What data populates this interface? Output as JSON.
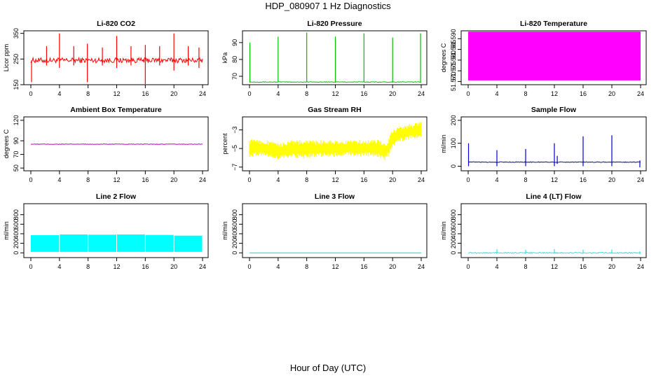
{
  "figure": {
    "title": "HDP_080907  1 Hz Diagnostics",
    "xlabel": "Hour of Day (UTC)"
  },
  "chart_data": [
    {
      "type": "line",
      "title": "Li-820 CO2",
      "xlabel": "Hour of Day (UTC)",
      "ylabel": "Licor ppm",
      "xlim": [
        0,
        24
      ],
      "ylim": [
        150,
        360
      ],
      "xticks": [
        0,
        4,
        8,
        12,
        16,
        20,
        24
      ],
      "xtick_labels": [
        "0",
        "4",
        "8",
        "12",
        "16",
        "20",
        "24"
      ],
      "yticks": [
        150,
        250,
        350
      ],
      "ytick_labels": [
        "150",
        "250",
        "350"
      ],
      "color": "#ff0000",
      "series": [
        {
          "name": "CO2",
          "baseline": 245,
          "noise": 10,
          "spikes": [
            {
              "x": 0.1,
              "low": 160,
              "high": 245
            },
            {
              "x": 2.2,
              "low": 225,
              "high": 300
            },
            {
              "x": 4.0,
              "low": 215,
              "high": 350
            },
            {
              "x": 6.0,
              "low": 225,
              "high": 300
            },
            {
              "x": 7.9,
              "low": 160,
              "high": 310
            },
            {
              "x": 10.0,
              "low": 225,
              "high": 295
            },
            {
              "x": 12.0,
              "low": 215,
              "high": 340
            },
            {
              "x": 14.0,
              "low": 225,
              "high": 300
            },
            {
              "x": 16.0,
              "low": 150,
              "high": 305
            },
            {
              "x": 18.0,
              "low": 225,
              "high": 300
            },
            {
              "x": 20.0,
              "low": 205,
              "high": 350
            },
            {
              "x": 22.0,
              "low": 225,
              "high": 300
            },
            {
              "x": 23.5,
              "low": 215,
              "high": 295
            }
          ]
        }
      ]
    },
    {
      "type": "line",
      "title": "Li-820 Pressure",
      "xlabel": "Hour of Day (UTC)",
      "ylabel": "kPa",
      "xlim": [
        0,
        24
      ],
      "ylim": [
        65,
        97
      ],
      "xticks": [
        0,
        4,
        8,
        12,
        16,
        20,
        24
      ],
      "xtick_labels": [
        "0",
        "4",
        "8",
        "12",
        "16",
        "20",
        "24"
      ],
      "yticks": [
        70,
        80,
        90
      ],
      "ytick_labels": [
        "70",
        "80",
        "90"
      ],
      "color": "#00c000",
      "series": [
        {
          "name": "Pressure",
          "baseline": 66.6,
          "noise": 0.2,
          "spikes": [
            {
              "x": 0.05,
              "low": 66.5,
              "high": 90
            },
            {
              "x": 4.0,
              "low": 66.5,
              "high": 93.5
            },
            {
              "x": 8.0,
              "low": 66.5,
              "high": 96
            },
            {
              "x": 12.0,
              "low": 66.5,
              "high": 93.5
            },
            {
              "x": 16.0,
              "low": 66.5,
              "high": 95.5
            },
            {
              "x": 20.0,
              "low": 66.5,
              "high": 93
            },
            {
              "x": 23.9,
              "low": 66.5,
              "high": 95.5
            }
          ]
        }
      ]
    },
    {
      "type": "area",
      "title": "Li-820 Temperature",
      "xlabel": "Hour of Day (UTC)",
      "ylabel": "degrees C",
      "xlim": [
        0,
        24
      ],
      "ylim": [
        51.5685,
        51.5937
      ],
      "xticks": [
        0,
        4,
        8,
        12,
        16,
        20,
        24
      ],
      "xtick_labels": [
        "0",
        "4",
        "8",
        "12",
        "16",
        "20",
        "24"
      ],
      "yticks": [
        51.57,
        51.575,
        51.58,
        51.585,
        51.59
      ],
      "ytick_labels": [
        "51.570",
        "51.575",
        "51.580",
        "51.585",
        "51.590"
      ],
      "color": "#ff00ff",
      "series": [
        {
          "name": "Temperature",
          "band_low": 51.5705,
          "band_high": 51.5933
        }
      ]
    },
    {
      "type": "line",
      "title": "Ambient Box Temperature",
      "xlabel": "Hour of Day (UTC)",
      "ylabel": "degrees C",
      "xlim": [
        0,
        24
      ],
      "ylim": [
        46,
        125
      ],
      "xticks": [
        0,
        4,
        8,
        12,
        16,
        20,
        24
      ],
      "xtick_labels": [
        "0",
        "4",
        "8",
        "12",
        "16",
        "20",
        "24"
      ],
      "yticks": [
        50,
        70,
        90,
        120
      ],
      "ytick_labels": [
        "50",
        "70",
        "90",
        "120"
      ],
      "color": "#c000c0",
      "series": [
        {
          "name": "Box Temperature",
          "baseline": 85,
          "noise": 0.4,
          "spikes": []
        }
      ]
    },
    {
      "type": "area",
      "title": "Gas Stream RH",
      "xlabel": "Hour of Day (UTC)",
      "ylabel": "percent",
      "xlim": [
        0,
        24
      ],
      "ylim": [
        -7.4,
        -1.6
      ],
      "xticks": [
        0,
        4,
        8,
        12,
        16,
        20,
        24
      ],
      "xtick_labels": [
        "0",
        "4",
        "8",
        "12",
        "16",
        "20",
        "24"
      ],
      "yticks": [
        -7,
        -5,
        -3
      ],
      "ytick_labels": [
        "−7",
        "−5",
        "−3"
      ],
      "color": "#ffff00",
      "series": [
        {
          "name": "RH",
          "x": [
            0,
            2,
            4,
            6,
            8,
            10,
            12,
            14,
            16,
            18,
            19,
            20,
            21,
            22,
            23,
            24
          ],
          "low": [
            -5.9,
            -5.8,
            -6.2,
            -6.0,
            -6.1,
            -5.9,
            -5.9,
            -5.8,
            -5.8,
            -5.9,
            -6.4,
            -5.0,
            -4.3,
            -4.1,
            -4.0,
            -3.9
          ],
          "high": [
            -4.0,
            -4.0,
            -4.4,
            -4.1,
            -4.1,
            -4.1,
            -4.1,
            -4.1,
            -4.0,
            -4.0,
            -4.5,
            -2.9,
            -2.6,
            -2.4,
            -2.3,
            -2.1
          ]
        }
      ]
    },
    {
      "type": "line",
      "title": "Sample Flow",
      "xlabel": "Hour of Day (UTC)",
      "ylabel": "ml/min",
      "xlim": [
        0,
        24
      ],
      "ylim": [
        -20,
        215
      ],
      "xticks": [
        0,
        4,
        8,
        12,
        16,
        20,
        24
      ],
      "xtick_labels": [
        "0",
        "4",
        "8",
        "12",
        "16",
        "20",
        "24"
      ],
      "yticks": [
        0,
        100,
        200
      ],
      "ytick_labels": [
        "0",
        "100",
        "200"
      ],
      "color": "#0000d0",
      "series": [
        {
          "name": "Sample Flow",
          "baseline": 18,
          "noise": 1.5,
          "spikes": [
            {
              "x": 0.05,
              "low": 0,
              "high": 100
            },
            {
              "x": 4.0,
              "low": 0,
              "high": 70
            },
            {
              "x": 8.0,
              "low": 0,
              "high": 75
            },
            {
              "x": 12.0,
              "low": 0,
              "high": 100
            },
            {
              "x": 12.4,
              "low": 10,
              "high": 45
            },
            {
              "x": 16.0,
              "low": 0,
              "high": 130
            },
            {
              "x": 20.0,
              "low": 0,
              "high": 135
            },
            {
              "x": 23.9,
              "low": -5,
              "high": 25
            }
          ]
        }
      ]
    },
    {
      "type": "area",
      "title": "Line 2 Flow",
      "xlabel": "Hour of Day (UTC)",
      "ylabel": "ml/min",
      "xlim": [
        0,
        24
      ],
      "ylim": [
        -100,
        1030
      ],
      "xticks": [
        0,
        4,
        8,
        12,
        16,
        20,
        24
      ],
      "xtick_labels": [
        "0",
        "4",
        "8",
        "12",
        "16",
        "20",
        "24"
      ],
      "yticks": [
        0,
        200,
        400,
        600,
        800
      ],
      "ytick_labels": [
        "0",
        "200",
        "400",
        "600",
        "800"
      ],
      "color": "#00ffff",
      "series": [
        {
          "name": "Line 2 Flow",
          "low": 20,
          "segments": [
            [
              0,
              3.95,
              370
            ],
            [
              4.05,
              7.95,
              385
            ],
            [
              8.05,
              11.95,
              380
            ],
            [
              12.05,
              15.95,
              385
            ],
            [
              16.05,
              19.95,
              375
            ],
            [
              20.05,
              23.95,
              360
            ]
          ]
        }
      ]
    },
    {
      "type": "line",
      "title": "Line 3 Flow",
      "xlabel": "Hour of Day (UTC)",
      "ylabel": "ml/min",
      "xlim": [
        0,
        24
      ],
      "ylim": [
        -100,
        1030
      ],
      "xticks": [
        0,
        4,
        8,
        12,
        16,
        20,
        24
      ],
      "xtick_labels": [
        "0",
        "4",
        "8",
        "12",
        "16",
        "20",
        "24"
      ],
      "yticks": [
        0,
        200,
        400,
        600,
        800
      ],
      "ytick_labels": [
        "0",
        "200",
        "400",
        "600",
        "800"
      ],
      "color": "#00e0e0",
      "series": [
        {
          "name": "Line 3 Flow",
          "baseline": 0,
          "noise": 0,
          "spikes": []
        }
      ]
    },
    {
      "type": "line",
      "title": "Line 4 (LT) Flow",
      "xlabel": "Hour of Day (UTC)",
      "ylabel": "ml/min",
      "xlim": [
        0,
        24
      ],
      "ylim": [
        -100,
        1030
      ],
      "xticks": [
        0,
        4,
        8,
        12,
        16,
        20,
        24
      ],
      "xtick_labels": [
        "0",
        "4",
        "8",
        "12",
        "16",
        "20",
        "24"
      ],
      "yticks": [
        0,
        200,
        400,
        600,
        800
      ],
      "ytick_labels": [
        "0",
        "200",
        "400",
        "600",
        "800"
      ],
      "color": "#40e0e0",
      "series": [
        {
          "name": "Line 4 Flow",
          "baseline": 0,
          "noise": 12,
          "spikes": [
            {
              "x": 4.0,
              "low": -20,
              "high": 75
            },
            {
              "x": 8.0,
              "low": -20,
              "high": 65
            },
            {
              "x": 12.0,
              "low": -20,
              "high": 80
            },
            {
              "x": 16.0,
              "low": -20,
              "high": 65
            },
            {
              "x": 20.0,
              "low": -20,
              "high": 70
            },
            {
              "x": 23.9,
              "low": -25,
              "high": 30
            }
          ]
        }
      ]
    }
  ]
}
